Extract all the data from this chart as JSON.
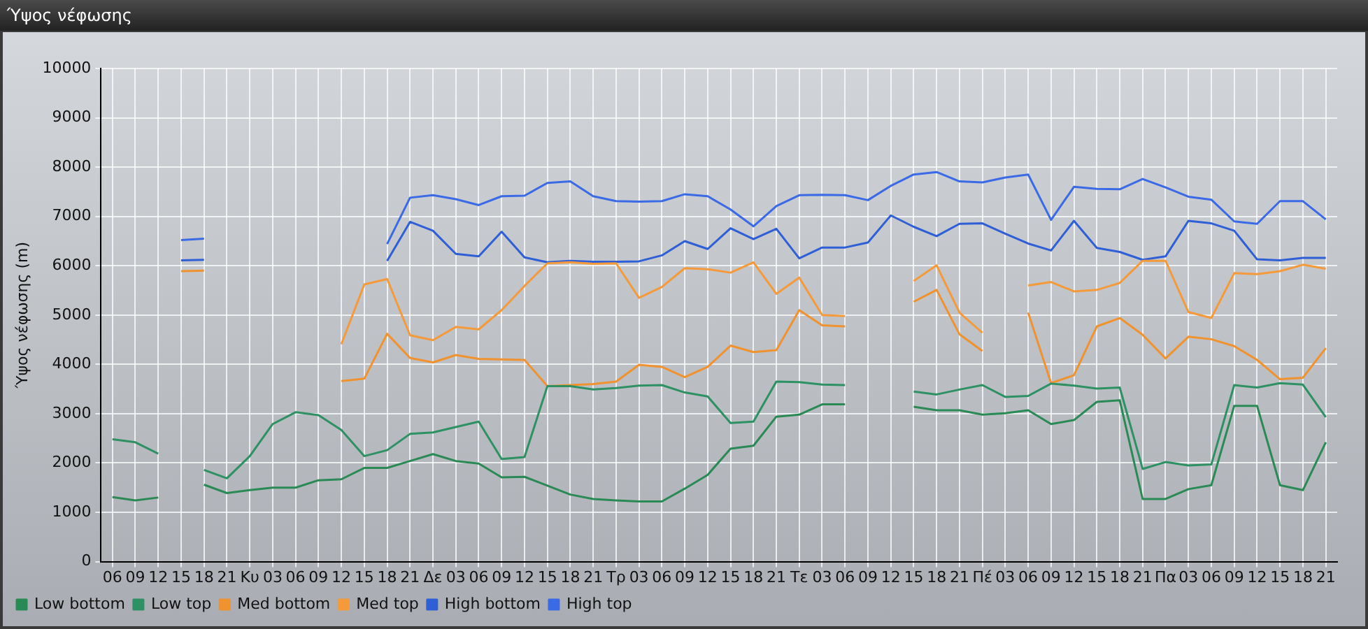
{
  "chart_data": {
    "type": "line",
    "title": "Ύψος νέφωσης",
    "ylabel": "Ύψος νέφωσης (m)",
    "categories": [
      "06",
      "09",
      "12",
      "15",
      "18",
      "21",
      "Κυ",
      "03",
      "06",
      "09",
      "12",
      "15",
      "18",
      "21",
      "Δε",
      "03",
      "06",
      "09",
      "12",
      "15",
      "18",
      "21",
      "Τρ",
      "03",
      "06",
      "09",
      "12",
      "15",
      "18",
      "21",
      "Τε",
      "03",
      "06",
      "09",
      "12",
      "15",
      "18",
      "21",
      "Πέ",
      "03",
      "06",
      "09",
      "12",
      "15",
      "18",
      "21",
      "Πα",
      "03",
      "06",
      "09",
      "12",
      "15",
      "18",
      "21"
    ],
    "ylim": [
      0,
      10000
    ],
    "yticks": [
      0,
      1000,
      2000,
      3000,
      4000,
      5000,
      6000,
      7000,
      8000,
      9000,
      10000
    ],
    "grid": true,
    "legend": "bottom",
    "marker": "none",
    "line_style": "solid",
    "series": [
      {
        "name": "Low bottom",
        "color": "#2a8a55",
        "values": [
          1310,
          1240,
          1300,
          null,
          1560,
          1390,
          1450,
          1500,
          1500,
          1650,
          1670,
          1900,
          1900,
          2040,
          2180,
          2040,
          1990,
          1710,
          1720,
          1540,
          1360,
          1270,
          1240,
          1220,
          1220,
          1480,
          1760,
          2290,
          2350,
          2940,
          2980,
          3190,
          3190,
          null,
          null,
          3140,
          3070,
          3070,
          2980,
          3010,
          3070,
          2790,
          2870,
          3240,
          3270,
          1270,
          1270,
          1470,
          1550,
          3160,
          3160,
          1550,
          1450,
          2420
        ]
      },
      {
        "name": "Low top",
        "color": "#2e9163",
        "values": [
          2480,
          2420,
          2190,
          null,
          1860,
          1690,
          2140,
          2790,
          3030,
          2970,
          2670,
          2140,
          2260,
          2590,
          2620,
          2730,
          2840,
          2080,
          2120,
          3560,
          3560,
          3490,
          3520,
          3570,
          3580,
          3430,
          3350,
          2810,
          2840,
          3650,
          3640,
          3590,
          3580,
          null,
          null,
          3450,
          3390,
          3490,
          3580,
          3340,
          3360,
          3610,
          3570,
          3510,
          3530,
          1880,
          2020,
          1950,
          1970,
          3580,
          3530,
          3620,
          3590,
          2930
        ]
      },
      {
        "name": "Med bottom",
        "color": "#f0922e",
        "values": [
          null,
          null,
          null,
          5890,
          5900,
          null,
          null,
          null,
          null,
          null,
          3660,
          3710,
          4620,
          4130,
          4040,
          4190,
          4110,
          4100,
          4090,
          3560,
          3580,
          3600,
          3650,
          3990,
          3950,
          3740,
          3950,
          4380,
          4250,
          4290,
          5100,
          4790,
          4770,
          null,
          null,
          5270,
          5510,
          4610,
          4270,
          null,
          5050,
          3620,
          3780,
          4770,
          4940,
          4600,
          4120,
          4560,
          4510,
          4370,
          4090,
          3700,
          3730,
          4330
        ]
      },
      {
        "name": "Med top",
        "color": "#f59a3a",
        "values": [
          null,
          null,
          null,
          null,
          null,
          null,
          null,
          null,
          null,
          null,
          4410,
          5620,
          5730,
          4590,
          4490,
          4760,
          4710,
          5100,
          5590,
          6050,
          6070,
          6040,
          6050,
          5350,
          5570,
          5950,
          5930,
          5860,
          6070,
          5430,
          5760,
          5000,
          4980,
          null,
          null,
          5690,
          6010,
          5050,
          4640,
          null,
          5600,
          5670,
          5480,
          5510,
          5650,
          6100,
          6100,
          5060,
          4940,
          5850,
          5830,
          5890,
          6020,
          5940
        ]
      },
      {
        "name": "High bottom",
        "color": "#2f5fd6",
        "values": [
          null,
          null,
          null,
          6110,
          6120,
          null,
          null,
          null,
          null,
          null,
          null,
          null,
          6100,
          6890,
          6710,
          6240,
          6190,
          6690,
          6170,
          6070,
          6100,
          6080,
          6080,
          6090,
          6210,
          6500,
          6340,
          6760,
          6540,
          6750,
          6150,
          6370,
          6370,
          6470,
          7020,
          6790,
          6600,
          6850,
          6860,
          6650,
          6450,
          6310,
          6910,
          6360,
          6280,
          6120,
          6190,
          6910,
          6860,
          6710,
          6130,
          6110,
          6160,
          6160
        ]
      },
      {
        "name": "High top",
        "color": "#3a6ae6",
        "values": [
          null,
          null,
          null,
          6520,
          6550,
          null,
          null,
          null,
          null,
          null,
          null,
          null,
          6440,
          7380,
          7430,
          7350,
          7230,
          7410,
          7420,
          7680,
          7710,
          7410,
          7310,
          7300,
          7310,
          7450,
          7410,
          7140,
          6800,
          7210,
          7430,
          7440,
          7430,
          7330,
          7620,
          7850,
          7900,
          7710,
          7690,
          7790,
          7850,
          6930,
          7600,
          7560,
          7550,
          7760,
          7590,
          7400,
          7340,
          6900,
          6850,
          7310,
          7310,
          6940
        ]
      }
    ]
  }
}
